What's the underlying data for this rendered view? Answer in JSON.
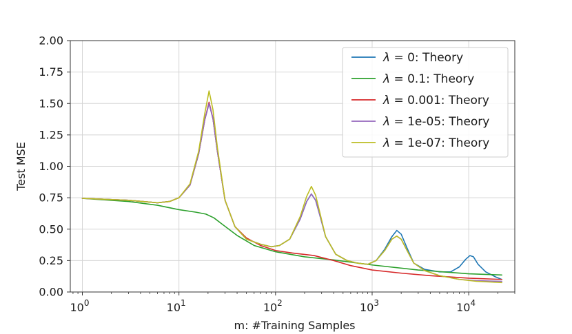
{
  "chart_data": {
    "type": "line",
    "xscale": "log",
    "xlabel": "m: #Training Samples",
    "ylabel": "Test MSE",
    "xlim": [
      0.75,
      30000
    ],
    "ylim": [
      0.0,
      2.0
    ],
    "grid": true,
    "legend_position": "upper-right",
    "xticks": [
      {
        "value": 1,
        "base": "10",
        "exp": "0"
      },
      {
        "value": 10,
        "base": "10",
        "exp": "1"
      },
      {
        "value": 100,
        "base": "10",
        "exp": "2"
      },
      {
        "value": 1000,
        "base": "10",
        "exp": "3"
      },
      {
        "value": 10000,
        "base": "10",
        "exp": "4"
      }
    ],
    "yticks": [
      "0.00",
      "0.25",
      "0.50",
      "0.75",
      "1.00",
      "1.25",
      "1.50",
      "1.75",
      "2.00"
    ],
    "series": [
      {
        "name": "λ = 0: Theory",
        "sym": "λ",
        "suffix": " = 0: Theory",
        "color": "#1f77b4",
        "points": [
          [
            1,
            0.745
          ],
          [
            3,
            0.73
          ],
          [
            6,
            0.71
          ],
          [
            8,
            0.72
          ],
          [
            10,
            0.75
          ],
          [
            13,
            0.85
          ],
          [
            16,
            1.1
          ],
          [
            18.5,
            1.37
          ],
          [
            20.5,
            1.5
          ],
          [
            22.5,
            1.38
          ],
          [
            25,
            1.12
          ],
          [
            30,
            0.73
          ],
          [
            38,
            0.52
          ],
          [
            50,
            0.42
          ],
          [
            70,
            0.38
          ],
          [
            90,
            0.36
          ],
          [
            110,
            0.37
          ],
          [
            140,
            0.42
          ],
          [
            180,
            0.58
          ],
          [
            210,
            0.72
          ],
          [
            235,
            0.78
          ],
          [
            260,
            0.73
          ],
          [
            290,
            0.6
          ],
          [
            330,
            0.44
          ],
          [
            420,
            0.3
          ],
          [
            550,
            0.25
          ],
          [
            700,
            0.23
          ],
          [
            900,
            0.22
          ],
          [
            1100,
            0.25
          ],
          [
            1350,
            0.34
          ],
          [
            1600,
            0.44
          ],
          [
            1800,
            0.49
          ],
          [
            2000,
            0.46
          ],
          [
            2300,
            0.35
          ],
          [
            2700,
            0.23
          ],
          [
            3500,
            0.18
          ],
          [
            5000,
            0.16
          ],
          [
            6500,
            0.16
          ],
          [
            8000,
            0.2
          ],
          [
            9300,
            0.26
          ],
          [
            10300,
            0.29
          ],
          [
            11200,
            0.28
          ],
          [
            12500,
            0.22
          ],
          [
            15000,
            0.16
          ],
          [
            19000,
            0.12
          ],
          [
            22000,
            0.1
          ]
        ]
      },
      {
        "name": "λ = 0.1: Theory",
        "sym": "λ",
        "suffix": " = 0.1: Theory",
        "color": "#2ca02c",
        "points": [
          [
            1,
            0.745
          ],
          [
            3,
            0.72
          ],
          [
            6,
            0.69
          ],
          [
            10,
            0.655
          ],
          [
            15,
            0.635
          ],
          [
            19,
            0.62
          ],
          [
            23,
            0.59
          ],
          [
            28,
            0.54
          ],
          [
            40,
            0.45
          ],
          [
            60,
            0.37
          ],
          [
            100,
            0.32
          ],
          [
            200,
            0.28
          ],
          [
            400,
            0.255
          ],
          [
            1000,
            0.215
          ],
          [
            3000,
            0.175
          ],
          [
            10000,
            0.145
          ],
          [
            22000,
            0.135
          ]
        ]
      },
      {
        "name": "λ = 0.001: Theory",
        "sym": "λ",
        "suffix": " = 0.001: Theory",
        "color": "#d62728",
        "points": [
          [
            1,
            0.745
          ],
          [
            3,
            0.73
          ],
          [
            6,
            0.71
          ],
          [
            8,
            0.72
          ],
          [
            10,
            0.75
          ],
          [
            13,
            0.85
          ],
          [
            16,
            1.1
          ],
          [
            18.5,
            1.37
          ],
          [
            20.5,
            1.51
          ],
          [
            22.5,
            1.38
          ],
          [
            25,
            1.12
          ],
          [
            30,
            0.73
          ],
          [
            38,
            0.52
          ],
          [
            50,
            0.43
          ],
          [
            70,
            0.37
          ],
          [
            100,
            0.33
          ],
          [
            150,
            0.31
          ],
          [
            250,
            0.29
          ],
          [
            400,
            0.25
          ],
          [
            600,
            0.21
          ],
          [
            1000,
            0.175
          ],
          [
            2000,
            0.15
          ],
          [
            4000,
            0.13
          ],
          [
            10000,
            0.11
          ],
          [
            22000,
            0.1
          ]
        ]
      },
      {
        "name": "λ = 1e-05: Theory",
        "sym": "λ",
        "suffix": " = 1e-05: Theory",
        "color": "#9467bd",
        "points": [
          [
            1,
            0.745
          ],
          [
            3,
            0.73
          ],
          [
            6,
            0.71
          ],
          [
            8,
            0.72
          ],
          [
            10,
            0.75
          ],
          [
            13,
            0.85
          ],
          [
            16,
            1.1
          ],
          [
            18.5,
            1.37
          ],
          [
            20.5,
            1.5
          ],
          [
            22.5,
            1.38
          ],
          [
            25,
            1.12
          ],
          [
            30,
            0.73
          ],
          [
            38,
            0.52
          ],
          [
            50,
            0.42
          ],
          [
            70,
            0.38
          ],
          [
            90,
            0.36
          ],
          [
            110,
            0.37
          ],
          [
            140,
            0.42
          ],
          [
            180,
            0.58
          ],
          [
            210,
            0.72
          ],
          [
            235,
            0.78
          ],
          [
            260,
            0.73
          ],
          [
            290,
            0.6
          ],
          [
            330,
            0.44
          ],
          [
            420,
            0.3
          ],
          [
            550,
            0.25
          ],
          [
            700,
            0.23
          ],
          [
            900,
            0.22
          ],
          [
            1100,
            0.25
          ],
          [
            1350,
            0.33
          ],
          [
            1600,
            0.42
          ],
          [
            1800,
            0.445
          ],
          [
            2000,
            0.42
          ],
          [
            2300,
            0.33
          ],
          [
            2700,
            0.23
          ],
          [
            3500,
            0.17
          ],
          [
            5000,
            0.13
          ],
          [
            8000,
            0.1
          ],
          [
            12000,
            0.09
          ],
          [
            22000,
            0.085
          ]
        ]
      },
      {
        "name": "λ = 1e-07: Theory",
        "sym": "λ",
        "suffix": " = 1e-07: Theory",
        "color": "#bcbd22",
        "points": [
          [
            1,
            0.745
          ],
          [
            3,
            0.73
          ],
          [
            6,
            0.71
          ],
          [
            8,
            0.72
          ],
          [
            10,
            0.75
          ],
          [
            13,
            0.86
          ],
          [
            16,
            1.12
          ],
          [
            18.5,
            1.42
          ],
          [
            20.5,
            1.6
          ],
          [
            22.5,
            1.45
          ],
          [
            25,
            1.15
          ],
          [
            30,
            0.73
          ],
          [
            38,
            0.52
          ],
          [
            50,
            0.42
          ],
          [
            70,
            0.38
          ],
          [
            90,
            0.36
          ],
          [
            110,
            0.37
          ],
          [
            140,
            0.42
          ],
          [
            180,
            0.6
          ],
          [
            210,
            0.76
          ],
          [
            235,
            0.84
          ],
          [
            260,
            0.77
          ],
          [
            290,
            0.62
          ],
          [
            330,
            0.44
          ],
          [
            420,
            0.3
          ],
          [
            550,
            0.25
          ],
          [
            700,
            0.23
          ],
          [
            900,
            0.22
          ],
          [
            1100,
            0.25
          ],
          [
            1350,
            0.33
          ],
          [
            1600,
            0.42
          ],
          [
            1800,
            0.445
          ],
          [
            2000,
            0.42
          ],
          [
            2300,
            0.33
          ],
          [
            2700,
            0.23
          ],
          [
            3500,
            0.17
          ],
          [
            5000,
            0.13
          ],
          [
            8000,
            0.1
          ],
          [
            12000,
            0.085
          ],
          [
            22000,
            0.075
          ]
        ]
      }
    ]
  }
}
